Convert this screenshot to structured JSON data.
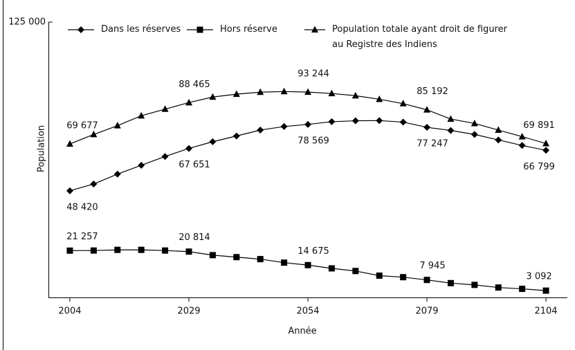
{
  "chart_data": {
    "type": "line",
    "xlabel": "Année",
    "ylabel": "Population",
    "x": [
      2004,
      2009,
      2014,
      2019,
      2024,
      2029,
      2034,
      2039,
      2044,
      2049,
      2054,
      2059,
      2064,
      2069,
      2074,
      2079,
      2084,
      2089,
      2094,
      2099,
      2104
    ],
    "xlim": [
      1999.5,
      2108.5
    ],
    "xticks": [
      2004,
      2029,
      2054,
      2079,
      2104
    ],
    "ylim": [
      0,
      125000
    ],
    "yticks": [
      {
        "value": 125000,
        "label": "125 000"
      }
    ],
    "legend": "top-left",
    "series": [
      {
        "name": "Dans les réserves",
        "color": "#000000",
        "marker": "diamond",
        "values": [
          48420,
          51500,
          56000,
          60000,
          64000,
          67651,
          70700,
          73300,
          76000,
          77600,
          78569,
          79800,
          80200,
          80300,
          79600,
          77247,
          75800,
          74000,
          71500,
          69000,
          66799
        ],
        "value_labels": [
          "48 420",
          null,
          null,
          null,
          null,
          "67 651",
          null,
          null,
          null,
          null,
          "78 569",
          null,
          null,
          null,
          null,
          "77 247",
          null,
          null,
          null,
          null,
          "66 799"
        ]
      },
      {
        "name": "Hors réserve",
        "color": "#000000",
        "marker": "square",
        "values": [
          21257,
          21300,
          21600,
          21600,
          21300,
          20814,
          19200,
          18300,
          17400,
          15800,
          14675,
          13200,
          12000,
          9900,
          9200,
          7945,
          6500,
          5700,
          4500,
          3900,
          3092
        ],
        "value_labels": [
          "21 257",
          null,
          null,
          null,
          null,
          "20 814",
          null,
          null,
          null,
          null,
          "14 675",
          null,
          null,
          null,
          null,
          "7 945",
          null,
          null,
          null,
          null,
          "3 092"
        ]
      },
      {
        "name": "Population totale ayant droit de figurer au Registre des Indiens",
        "color": "#000000",
        "marker": "triangle",
        "values": [
          69677,
          74000,
          78000,
          82500,
          85500,
          88465,
          91000,
          92300,
          93200,
          93500,
          93244,
          92600,
          91600,
          90000,
          88000,
          85192,
          81000,
          79000,
          76000,
          73000,
          69891
        ],
        "value_labels": [
          "69 677",
          null,
          null,
          null,
          null,
          "88 465",
          null,
          null,
          null,
          null,
          "93 244",
          null,
          null,
          null,
          null,
          "85 192",
          null,
          null,
          null,
          null,
          "69 891"
        ]
      }
    ]
  }
}
